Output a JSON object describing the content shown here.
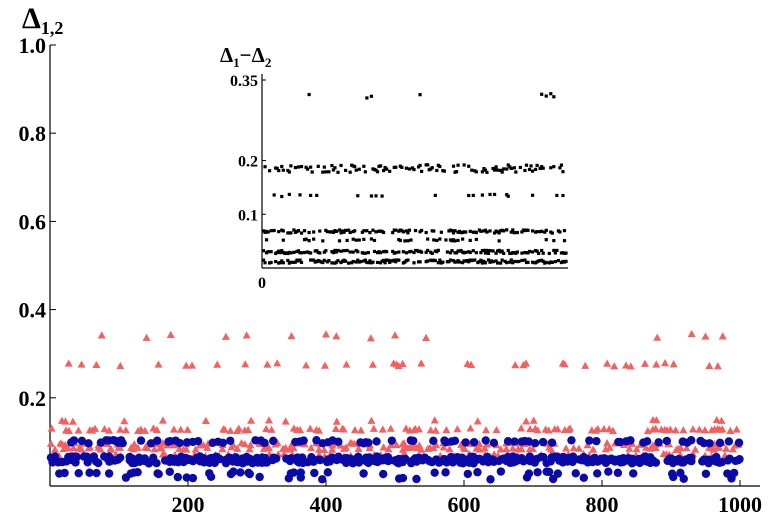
{
  "chart_data": [
    {
      "type": "scatter",
      "title": "",
      "ylabel_main": "Δ",
      "ylabel_sub": "1,2",
      "xlabel": "",
      "xlim": [
        0,
        1000
      ],
      "ylim": [
        0,
        1.0
      ],
      "x_ticks": [
        200,
        400,
        600,
        800,
        1000
      ],
      "x_tick_labels": [
        "200",
        "400",
        "600",
        "800",
        "1000"
      ],
      "y_ticks": [
        0.2,
        0.4,
        0.6,
        0.8,
        1.0
      ],
      "y_tick_labels": [
        "0.2",
        "0.4",
        "0.6",
        "0.8",
        "1.0"
      ],
      "grid": false,
      "series": [
        {
          "color": "#f26060",
          "marker": "triangle",
          "bands": [
            {
              "y": 0.275,
              "jitter": 0.004,
              "density": 0.2,
              "outliers": {
                "y": 0.34,
                "x": [
                  75,
                  140,
                  175,
                  255,
                  285,
                  350,
                  400,
                  415,
                  465,
                  500,
                  545,
                  880,
                  930,
                  950,
                  975
                ]
              }
            },
            {
              "y": 0.128,
              "jitter": 0.003,
              "density": 0.38
            },
            {
              "y": 0.148,
              "jitter": 0.002,
              "density": 0.06
            },
            {
              "y": 0.095,
              "jitter": 0.003,
              "density": 0.35
            },
            {
              "y": 0.085,
              "jitter": 0.003,
              "density": 0.35
            },
            {
              "y": 0.07,
              "jitter": 0.003,
              "density": 0.25
            }
          ]
        },
        {
          "color": "#0a0aa8",
          "marker": "circle",
          "bands": [
            {
              "y": 0.1,
              "jitter": 0.004,
              "density": 0.35
            },
            {
              "y": 0.063,
              "jitter": 0.004,
              "density": 0.6
            },
            {
              "y": 0.055,
              "jitter": 0.004,
              "density": 0.6
            },
            {
              "y": 0.03,
              "jitter": 0.003,
              "density": 0.15
            },
            {
              "y": 0.018,
              "jitter": 0.003,
              "density": 0.06
            }
          ]
        }
      ]
    },
    {
      "type": "scatter",
      "title": "",
      "ylabel_main": "Δ",
      "ylabel_sub1": "1",
      "ylabel_minus": "−",
      "ylabel_sub2": "2",
      "xlim": [
        0,
        1000
      ],
      "ylim": [
        0,
        0.35
      ],
      "x_ticks": [
        0
      ],
      "x_tick_labels": [
        "0"
      ],
      "y_ticks": [
        0.1,
        0.2,
        0.35
      ],
      "y_tick_labels": [
        "0.1",
        "0.2",
        "0.35"
      ],
      "grid": false,
      "series": [
        {
          "color": "#000000",
          "marker": "square",
          "bands": [
            {
              "y": 0.32,
              "jitter": 0.004,
              "density": 0.05,
              "xmax": 540,
              "extra_x": [
                920,
                935,
                950,
                960
              ]
            },
            {
              "y": 0.185,
              "jitter": 0.007,
              "density": 0.55,
              "xmin": 0
            },
            {
              "y": 0.135,
              "jitter": 0.002,
              "density": 0.08
            },
            {
              "y": 0.068,
              "jitter": 0.003,
              "density": 0.6
            },
            {
              "y": 0.052,
              "jitter": 0.002,
              "density": 0.15
            },
            {
              "y": 0.03,
              "jitter": 0.003,
              "density": 0.7
            },
            {
              "y": 0.012,
              "jitter": 0.003,
              "density": 0.7
            }
          ]
        }
      ]
    }
  ]
}
